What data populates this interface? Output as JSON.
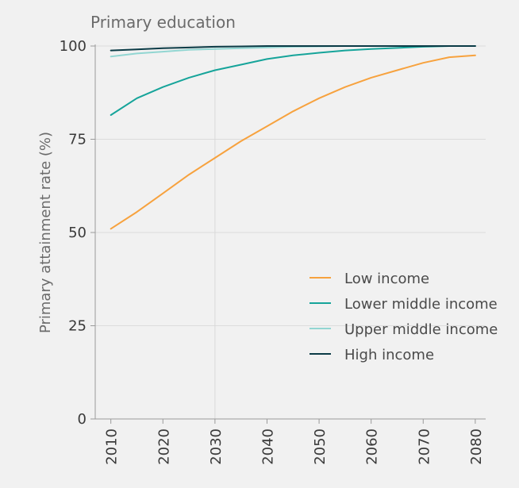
{
  "chart_data": {
    "type": "line",
    "title": "Primary education",
    "xlabel": "",
    "ylabel": "Primary attainment rate (%)",
    "xlim": [
      2007,
      2082
    ],
    "ylim": [
      0,
      100
    ],
    "x_ticks": [
      2010,
      2020,
      2030,
      2040,
      2050,
      2060,
      2070,
      2080
    ],
    "y_ticks": [
      0,
      25,
      50,
      75,
      100
    ],
    "reference_line_x": 2030,
    "grid": "horizontal",
    "legend_position": "bottom-right",
    "series": [
      {
        "name": "Low income",
        "color": "#f7a23e",
        "x": [
          2010,
          2015,
          2020,
          2025,
          2030,
          2035,
          2040,
          2045,
          2050,
          2055,
          2060,
          2065,
          2070,
          2075,
          2080
        ],
        "values": [
          51,
          55.5,
          60.5,
          65.5,
          70,
          74.5,
          78.5,
          82.5,
          86,
          89,
          91.5,
          93.5,
          95.5,
          97,
          97.5
        ]
      },
      {
        "name": "Lower middle income",
        "color": "#16a49a",
        "x": [
          2010,
          2015,
          2020,
          2025,
          2030,
          2035,
          2040,
          2045,
          2050,
          2055,
          2060,
          2065,
          2070,
          2075,
          2080
        ],
        "values": [
          81.5,
          86,
          89,
          91.5,
          93.5,
          95,
          96.5,
          97.5,
          98.2,
          98.8,
          99.2,
          99.5,
          99.8,
          100,
          100
        ]
      },
      {
        "name": "Upper middle income",
        "color": "#92d6d2",
        "x": [
          2010,
          2015,
          2020,
          2025,
          2030,
          2035,
          2040,
          2045,
          2050,
          2055,
          2060,
          2065,
          2070,
          2075,
          2080
        ],
        "values": [
          97.2,
          98,
          98.5,
          99,
          99.2,
          99.4,
          99.6,
          99.8,
          99.9,
          100,
          100,
          100,
          100,
          100,
          100
        ]
      },
      {
        "name": "High income",
        "color": "#0b3b46",
        "x": [
          2010,
          2015,
          2020,
          2025,
          2030,
          2035,
          2040,
          2045,
          2050,
          2055,
          2060,
          2065,
          2070,
          2075,
          2080
        ],
        "values": [
          98.8,
          99.1,
          99.4,
          99.6,
          99.8,
          99.9,
          100,
          100,
          100,
          100,
          100,
          100,
          100,
          100,
          100
        ]
      }
    ]
  }
}
